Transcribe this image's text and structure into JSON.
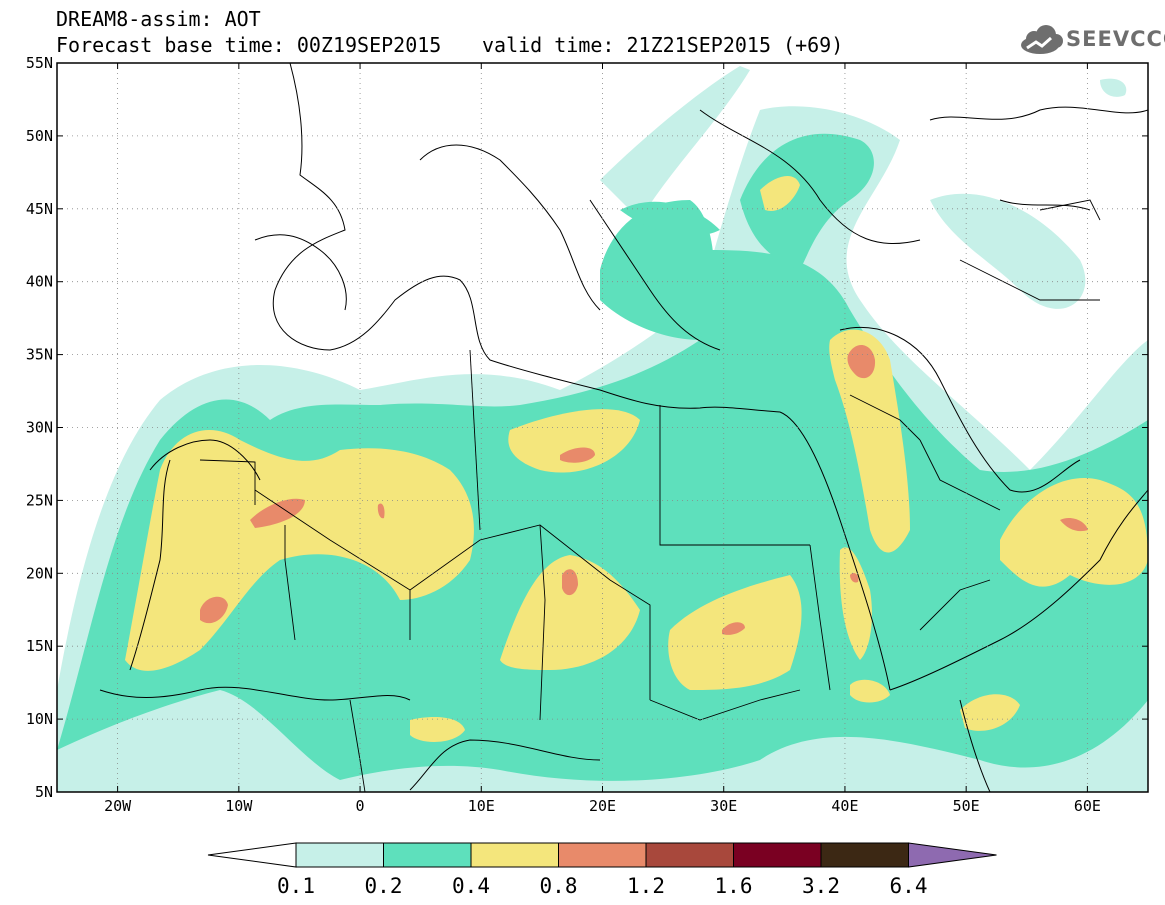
{
  "header": {
    "title": "DREAM8-assim: AOT",
    "base_time": "Forecast base time: 00Z19SEP2015",
    "valid_time": "valid time: 21Z21SEP2015 (+69)"
  },
  "logo": {
    "text": "SEEVCCC",
    "icon": "cloud-icon",
    "color": "#6e6e6e"
  },
  "map": {
    "projection": "lat-lon",
    "lon_range": [
      -25,
      65
    ],
    "lat_range": [
      5,
      55
    ],
    "grid": "dotted",
    "lat_labels": [
      "55N",
      "50N",
      "45N",
      "40N",
      "35N",
      "30N",
      "25N",
      "20N",
      "15N",
      "10N",
      "5N"
    ],
    "lon_labels": [
      "20W",
      "10W",
      "0",
      "10E",
      "20E",
      "30E",
      "40E",
      "50E",
      "60E"
    ],
    "lat_values": [
      55,
      50,
      45,
      40,
      35,
      30,
      25,
      20,
      15,
      10,
      5
    ],
    "lon_values": [
      -20,
      -10,
      0,
      10,
      20,
      30,
      40,
      50,
      60
    ]
  },
  "colorbar": {
    "levels": [
      "0.1",
      "0.2",
      "0.4",
      "0.8",
      "1.2",
      "1.6",
      "3.2",
      "6.4"
    ],
    "colors": [
      "#c6f0e8",
      "#5ee0bc",
      "#f4e67c",
      "#e88a6a",
      "#a8483c",
      "#7a0022",
      "#3c2814",
      "#8e6ab0"
    ]
  }
}
